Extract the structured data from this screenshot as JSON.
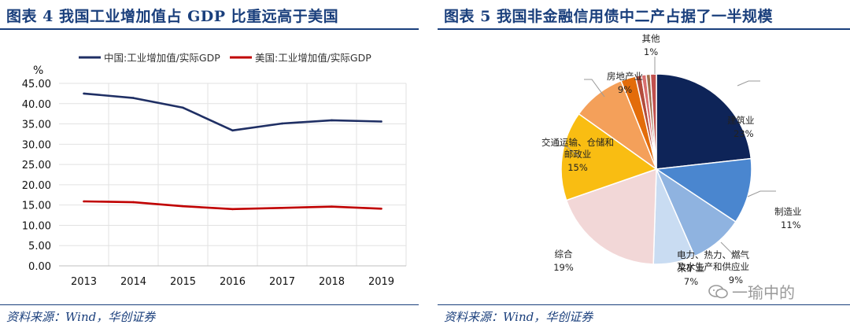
{
  "left": {
    "title": "图表 4   我国工业增加值占 GDP 比重远高于美国",
    "source": "资料来源：Wind，华创证券",
    "chart_data": {
      "type": "line",
      "title": "",
      "ylabel": "%",
      "x": [
        "2013",
        "2014",
        "2015",
        "2016",
        "2017",
        "2018",
        "2019"
      ],
      "ylim": [
        0,
        45
      ],
      "yticks": [
        "0.00",
        "5.00",
        "10.00",
        "15.00",
        "20.00",
        "25.00",
        "30.00",
        "35.00",
        "40.00",
        "45.00"
      ],
      "grid": true,
      "legend_position": "top",
      "series": [
        {
          "name": "中国:工业增加值/实际GDP",
          "color": "#1f2f64",
          "values": [
            42.5,
            41.4,
            39.0,
            33.4,
            35.1,
            35.9,
            35.6
          ]
        },
        {
          "name": "美国:工业增加值/实际GDP",
          "color": "#c00000",
          "values": [
            15.9,
            15.7,
            14.7,
            14.0,
            14.3,
            14.6,
            14.1
          ]
        }
      ]
    }
  },
  "right": {
    "title": "图表 5   我国非金融信用债中二产占据了一半规模",
    "source": "资料来源：Wind，华创证券",
    "chart_data": {
      "type": "pie",
      "title": "",
      "slices": [
        {
          "label": "建筑业",
          "pct_label": "23%",
          "value": 23,
          "color": "#0e2458"
        },
        {
          "label": "制造业",
          "pct_label": "11%",
          "value": 11,
          "color": "#4a86cf"
        },
        {
          "label": "电力、热力、燃气及水生产和供应业",
          "pct_label": "9%",
          "value": 9,
          "color": "#8fb3e0"
        },
        {
          "label": "采矿业",
          "pct_label": "7%",
          "value": 7,
          "color": "#c9dcf2"
        },
        {
          "label": "综合",
          "pct_label": "19%",
          "value": 19,
          "color": "#f2d7d7"
        },
        {
          "label": "交通运输、仓储和邮政业",
          "pct_label": "15%",
          "value": 15,
          "color": "#f9bd12"
        },
        {
          "label": "房地产业",
          "pct_label": "9%",
          "value": 9,
          "color": "#f4a05a"
        },
        {
          "label": "",
          "pct_label": "",
          "value": 2.5,
          "color": "#e36c0a"
        },
        {
          "label": "",
          "pct_label": "",
          "value": 1.0,
          "color": "#b34b3b"
        },
        {
          "label": "",
          "pct_label": "",
          "value": 0.8,
          "color": "#d86f6f"
        },
        {
          "label": "",
          "pct_label": "",
          "value": 0.7,
          "color": "#9e6d4a"
        },
        {
          "label": "其他",
          "pct_label": "1%",
          "value": 1,
          "color": "#c0504d"
        }
      ]
    }
  },
  "watermark": {
    "text": "一瑜中的",
    "icon": "chat-bubble-icon"
  }
}
